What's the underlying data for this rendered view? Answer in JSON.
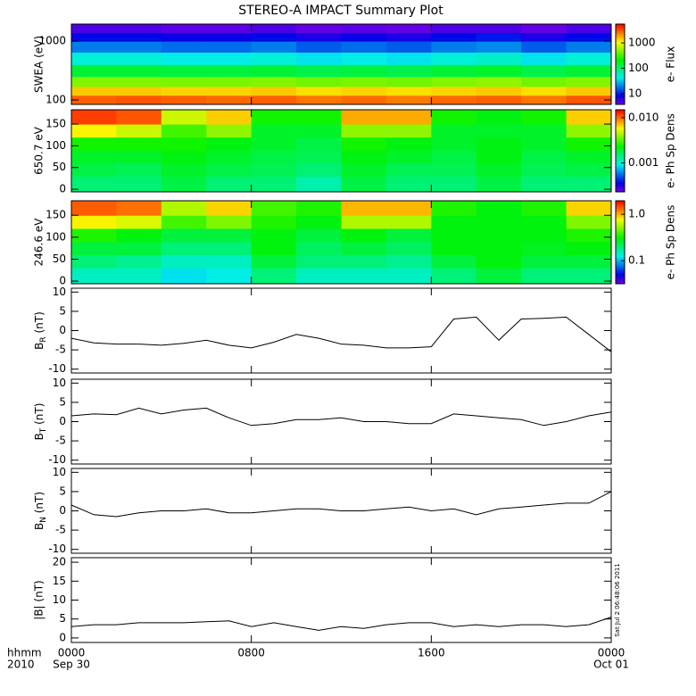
{
  "title": "STEREO-A IMPACT Summary Plot",
  "timestamp": "Sat Jul  2 06:48:06 2011",
  "x_axis": {
    "xlim": [
      0,
      24
    ],
    "xticks": [
      {
        "value": 0,
        "label": "0000"
      },
      {
        "value": 8,
        "label": "0800"
      },
      {
        "value": 16,
        "label": "1600"
      },
      {
        "value": 24,
        "label": "0000"
      }
    ],
    "date_labels": [
      "Sep 30",
      "Oct 01"
    ],
    "corner_labels": [
      "hhmm",
      "2010"
    ]
  },
  "chart_data": [
    {
      "type": "heatmap",
      "ylabel": "SWEA (eV)",
      "ylog": true,
      "ylim": [
        84,
        1950
      ],
      "yticks": [
        100,
        1000
      ],
      "zlabel": "e- Flux",
      "zlog": true,
      "zlim": [
        3.8,
        5500
      ],
      "zticks": [
        10,
        100,
        1000
      ],
      "x_edges": [
        0,
        2,
        4,
        6,
        8,
        10,
        12,
        14,
        16,
        18,
        20,
        22,
        24
      ],
      "y_edges": [
        84,
        120,
        170,
        250,
        400,
        650,
        1000,
        1400,
        1950
      ],
      "z": [
        [
          3000,
          3200,
          3000,
          2800,
          3000,
          2600,
          2800,
          2500,
          2800,
          3000,
          2600,
          3200
        ],
        [
          1500,
          1500,
          1400,
          1400,
          1500,
          1300,
          1400,
          1300,
          1400,
          1500,
          1300,
          1500
        ],
        [
          500,
          500,
          480,
          480,
          500,
          450,
          480,
          450,
          500,
          550,
          450,
          500
        ],
        [
          150,
          150,
          140,
          140,
          150,
          130,
          140,
          130,
          150,
          160,
          130,
          150
        ],
        [
          50,
          50,
          45,
          45,
          50,
          40,
          45,
          40,
          50,
          55,
          40,
          50
        ],
        [
          20,
          20,
          18,
          18,
          20,
          16,
          18,
          16,
          20,
          22,
          16,
          20
        ],
        [
          9,
          9,
          8,
          8,
          9,
          7,
          8,
          7,
          9,
          10,
          7,
          9
        ],
        [
          5,
          5,
          4.5,
          4.5,
          5,
          4.2,
          4.5,
          4.2,
          5,
          5,
          4.2,
          5
        ]
      ]
    },
    {
      "type": "heatmap",
      "ylabel": "650.7 eV",
      "ylog": false,
      "ylim": [
        -6,
        183
      ],
      "yticks": [
        0,
        50,
        100,
        150
      ],
      "zlabel": "e- Ph Sp Dens",
      "zlog": true,
      "zlim": [
        0.00023,
        0.015
      ],
      "zticks": [
        0.001,
        {
          "value": 0.01,
          "label": "0.010"
        }
      ],
      "x_edges": [
        0,
        2,
        4,
        6,
        8,
        10,
        12,
        14,
        16,
        18,
        20,
        22,
        24
      ],
      "y_edges": [
        -6,
        30,
        60,
        90,
        120,
        150,
        183
      ],
      "z": [
        [
          0.0015,
          0.0015,
          0.0018,
          0.0015,
          0.0015,
          0.0012,
          0.0018,
          0.0015,
          0.0015,
          0.0018,
          0.0015,
          0.0015
        ],
        [
          0.0018,
          0.0017,
          0.002,
          0.0018,
          0.0017,
          0.0015,
          0.002,
          0.0017,
          0.0017,
          0.002,
          0.0017,
          0.0018
        ],
        [
          0.002,
          0.002,
          0.0022,
          0.002,
          0.0018,
          0.0017,
          0.0022,
          0.002,
          0.0018,
          0.0022,
          0.0018,
          0.002
        ],
        [
          0.0025,
          0.0025,
          0.0025,
          0.0022,
          0.002,
          0.0018,
          0.0025,
          0.0022,
          0.002,
          0.0022,
          0.002,
          0.0025
        ],
        [
          0.006,
          0.005,
          0.003,
          0.004,
          0.002,
          0.002,
          0.004,
          0.004,
          0.002,
          0.002,
          0.002,
          0.004
        ],
        [
          0.012,
          0.011,
          0.005,
          0.007,
          0.0025,
          0.0025,
          0.008,
          0.008,
          0.0025,
          0.0022,
          0.0025,
          0.007
        ]
      ]
    },
    {
      "type": "heatmap",
      "ylabel": "246.6 eV",
      "ylog": false,
      "ylim": [
        -6,
        183
      ],
      "yticks": [
        0,
        50,
        100,
        150
      ],
      "zlabel": "e- Ph Sp Dens",
      "zlog": true,
      "zlim": [
        0.032,
        1.95
      ],
      "zticks": [
        0.1,
        {
          "value": 1,
          "label": "1.0"
        }
      ],
      "x_edges": [
        0,
        2,
        4,
        6,
        8,
        10,
        12,
        14,
        16,
        18,
        20,
        22,
        24
      ],
      "y_edges": [
        -6,
        30,
        60,
        90,
        120,
        150,
        183
      ],
      "z": [
        [
          0.15,
          0.15,
          0.12,
          0.13,
          0.2,
          0.15,
          0.15,
          0.15,
          0.2,
          0.25,
          0.2,
          0.2
        ],
        [
          0.2,
          0.18,
          0.15,
          0.15,
          0.25,
          0.2,
          0.2,
          0.18,
          0.25,
          0.3,
          0.25,
          0.25
        ],
        [
          0.25,
          0.25,
          0.2,
          0.2,
          0.3,
          0.22,
          0.25,
          0.22,
          0.3,
          0.3,
          0.28,
          0.3
        ],
        [
          0.35,
          0.3,
          0.25,
          0.25,
          0.3,
          0.25,
          0.3,
          0.25,
          0.3,
          0.3,
          0.3,
          0.35
        ],
        [
          0.8,
          0.7,
          0.4,
          0.5,
          0.35,
          0.3,
          0.6,
          0.6,
          0.3,
          0.3,
          0.3,
          0.5
        ],
        [
          1.4,
          1.3,
          0.6,
          0.9,
          0.4,
          0.35,
          1.0,
          1.0,
          0.35,
          0.3,
          0.35,
          0.9
        ]
      ]
    },
    {
      "type": "line",
      "ylabel": {
        "base": "B",
        "sub": "R",
        "unit": " (nT)"
      },
      "ylim": [
        -11,
        11
      ],
      "yticks": [
        -10,
        -5,
        0,
        5,
        10
      ],
      "color": "#000000",
      "x": [
        0,
        1,
        2,
        3,
        4,
        5,
        6,
        7,
        8,
        9,
        10,
        11,
        12,
        13,
        14,
        15,
        16,
        17,
        18,
        19,
        20,
        21,
        22,
        23,
        24
      ],
      "values": [
        -2,
        -3.2,
        -3.5,
        -3.5,
        -3.8,
        -3.3,
        -2.5,
        -3.8,
        -4.5,
        -3,
        -1,
        -2,
        -3.5,
        -3.8,
        -4.5,
        -4.5,
        -4.2,
        3,
        3.5,
        -2.5,
        3,
        3.2,
        3.5,
        -1,
        -5.5
      ]
    },
    {
      "type": "line",
      "ylabel": {
        "base": "B",
        "sub": "T",
        "unit": " (nT)"
      },
      "ylim": [
        -11,
        11
      ],
      "yticks": [
        -10,
        -5,
        0,
        5,
        10
      ],
      "color": "#000000",
      "x": [
        0,
        1,
        2,
        3,
        4,
        5,
        6,
        7,
        8,
        9,
        10,
        11,
        12,
        13,
        14,
        15,
        16,
        17,
        18,
        19,
        20,
        21,
        22,
        23,
        24
      ],
      "values": [
        1.5,
        2,
        1.8,
        3.5,
        2,
        3,
        3.5,
        1,
        -1,
        -0.5,
        0.5,
        0.5,
        1,
        0,
        0,
        -0.5,
        -0.5,
        2,
        1.5,
        1,
        0.5,
        -1,
        0,
        1.5,
        2.5
      ]
    },
    {
      "type": "line",
      "ylabel": {
        "base": "B",
        "sub": "N",
        "unit": " (nT)"
      },
      "ylim": [
        -11,
        11
      ],
      "yticks": [
        -10,
        -5,
        0,
        5,
        10
      ],
      "color": "#000000",
      "x": [
        0,
        1,
        2,
        3,
        4,
        5,
        6,
        7,
        8,
        9,
        10,
        11,
        12,
        13,
        14,
        15,
        16,
        17,
        18,
        19,
        20,
        21,
        22,
        23,
        24
      ],
      "values": [
        1.5,
        -1,
        -1.5,
        -0.5,
        0,
        0,
        0.5,
        -0.5,
        -0.5,
        0,
        0.5,
        0.5,
        0,
        0,
        0.5,
        1,
        0,
        0.5,
        -1,
        0.5,
        1,
        1.5,
        2,
        2,
        5
      ]
    },
    {
      "type": "line",
      "ylabel": "|B| (nT)",
      "ylim": [
        -1.2,
        21.2
      ],
      "yticks": [
        0,
        5,
        10,
        15,
        20
      ],
      "color": "#000000",
      "x": [
        0,
        1,
        2,
        3,
        4,
        5,
        6,
        7,
        8,
        9,
        10,
        11,
        12,
        13,
        14,
        15,
        16,
        17,
        18,
        19,
        20,
        21,
        22,
        23,
        24
      ],
      "values": [
        3,
        3.5,
        3.5,
        4,
        4,
        4,
        4.3,
        4.5,
        3,
        4,
        3,
        2,
        3,
        2.5,
        3.5,
        4,
        4,
        3,
        3.5,
        3,
        3.5,
        3.5,
        3,
        3.5,
        5.5
      ]
    }
  ]
}
